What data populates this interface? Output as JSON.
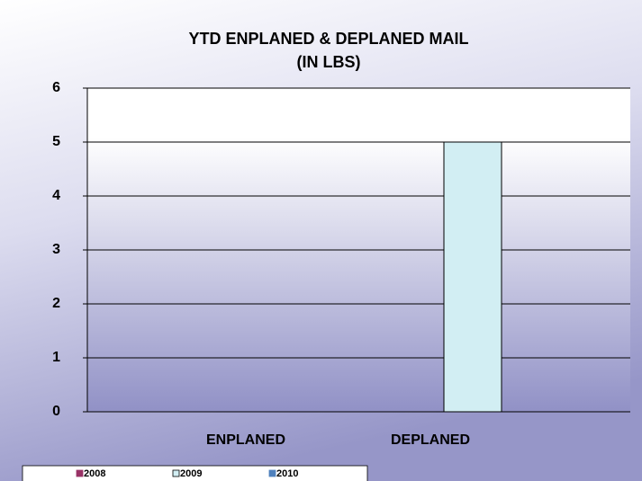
{
  "chart_data": {
    "type": "bar",
    "title": "YTD ENPLANED & DEPLANED MAIL",
    "subtitle": "(IN LBS)",
    "categories": [
      "ENPLANED",
      "DEPLANED"
    ],
    "series": [
      {
        "name": "2008",
        "color": "#993366",
        "values": [
          0,
          0
        ]
      },
      {
        "name": "2009",
        "color": "#d2eef3",
        "values": [
          0,
          5
        ]
      },
      {
        "name": "2010",
        "color": "#4f81bd",
        "values": [
          0,
          0
        ]
      }
    ],
    "ylim": [
      0,
      6
    ],
    "yticks": [
      0,
      1,
      2,
      3,
      4,
      5,
      6
    ],
    "grid": true,
    "legend": "bottom"
  }
}
